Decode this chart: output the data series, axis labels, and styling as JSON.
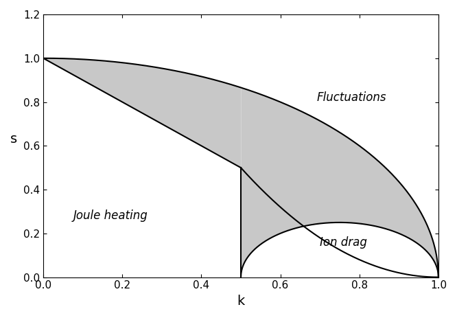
{
  "xlim": [
    0.0,
    1.0
  ],
  "ylim": [
    0.0,
    1.2
  ],
  "xlabel": "k",
  "ylabel": "s",
  "xticks": [
    0.0,
    0.2,
    0.4,
    0.6,
    0.8,
    1.0
  ],
  "yticks": [
    0.0,
    0.2,
    0.4,
    0.6,
    0.8,
    1.0,
    1.2
  ],
  "label_fluctuations": "Fluctuations",
  "label_joule": "Joule heating",
  "label_ion": "Ion drag",
  "shade_color": "#c8c8c8",
  "line_color": "#000000",
  "background_color": "#ffffff",
  "figsize": [
    6.66,
    4.63
  ],
  "dpi": 100
}
